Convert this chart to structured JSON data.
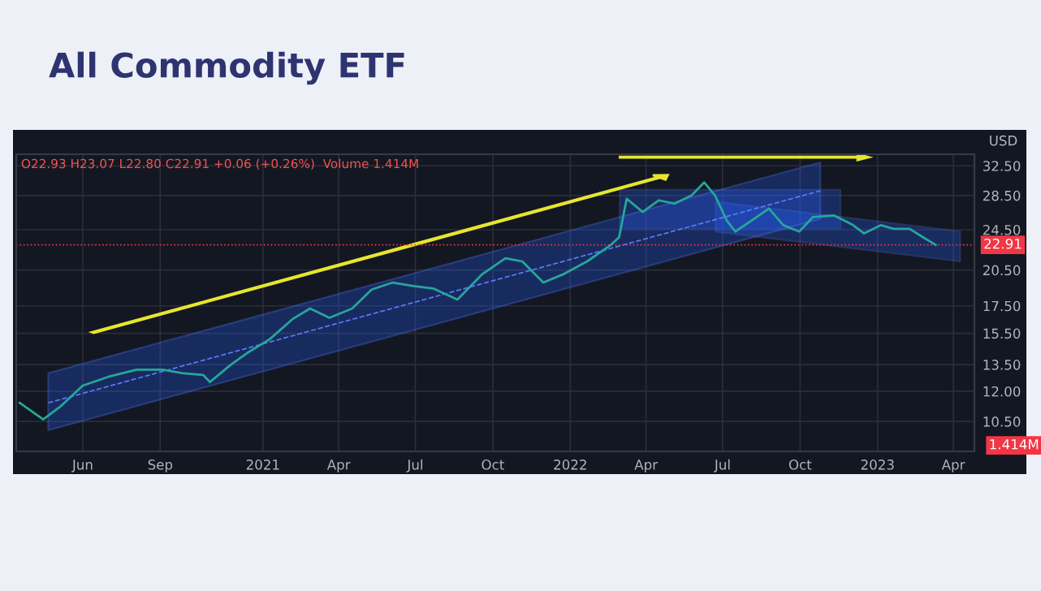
{
  "chart_data": {
    "type": "line",
    "title": "All Commodity ETF",
    "ylabel": "USD",
    "annotations": [
      "O22.93 H23.07 L22.80 C22.91 +0.06 (+0.26%)  Volume 1.414M",
      "1.414M"
    ],
    "x": [
      "2020-03-18",
      "2020-04-15",
      "2020-05-05",
      "2020-06-01",
      "2020-07-02",
      "2020-08-04",
      "2020-09-04",
      "2020-09-27",
      "2020-10-22",
      "2020-10-30",
      "2020-11-24",
      "2020-12-13",
      "2021-01-09",
      "2021-02-05",
      "2021-02-26",
      "2021-03-21",
      "2021-04-17",
      "2021-05-10",
      "2021-06-04",
      "2021-06-29",
      "2021-07-22",
      "2021-08-20",
      "2021-09-18",
      "2021-10-16",
      "2021-11-05",
      "2021-11-30",
      "2021-12-23",
      "2022-01-21",
      "2022-02-18",
      "2022-02-28",
      "2022-03-09",
      "2022-03-28",
      "2022-04-16",
      "2022-05-05",
      "2022-05-25",
      "2022-06-09",
      "2022-06-22",
      "2022-07-06",
      "2022-07-16",
      "2022-08-04",
      "2022-08-25",
      "2022-09-11",
      "2022-09-30",
      "2022-10-16",
      "2022-11-10",
      "2022-12-03",
      "2022-12-16",
      "2023-01-05",
      "2023-01-20",
      "2023-02-08",
      "2023-02-24",
      "2023-03-11"
    ],
    "series": [
      {
        "type": "line",
        "color": "#5b7cff",
        "line_style": "dashed",
        "x": [
          "2020-04-21",
          "2022-10-25"
        ],
        "values": [
          11.4,
          29.1
        ],
        "lower": [
          10.1,
          25.7
        ],
        "upper": [
          13.0,
          33.0
        ]
      },
      {
        "color": "#26a69a",
        "values": [
          11.4,
          10.6,
          11.2,
          12.3,
          12.8,
          13.2,
          13.2,
          13.0,
          12.9,
          12.5,
          13.5,
          14.2,
          15.1,
          16.5,
          17.3,
          16.6,
          17.3,
          18.8,
          19.4,
          19.1,
          18.9,
          18.0,
          20.1,
          21.6,
          21.3,
          19.4,
          20.1,
          21.3,
          22.9,
          23.7,
          28.1,
          26.5,
          27.9,
          27.5,
          28.5,
          30.2,
          28.5,
          25.5,
          24.3,
          25.5,
          26.9,
          25.0,
          24.3,
          25.9,
          26.1,
          25.0,
          24.1,
          25.0,
          24.6,
          24.6,
          23.7,
          22.91
        ]
      }
    ],
    "log": true,
    "ylim": [
      9.2,
      34.2
    ],
    "yticks": [
      {
        "value": 10.5,
        "label": "10.50"
      },
      {
        "value": 12,
        "label": "12.00"
      },
      {
        "value": 13.5,
        "label": "13.50"
      },
      {
        "value": 15.5,
        "label": "15.50"
      },
      {
        "value": 17.5,
        "label": "17.50"
      },
      {
        "value": 20.5,
        "label": "20.50"
      },
      {
        "value": 24.5,
        "label": "24.50"
      },
      {
        "value": 28.5,
        "label": "28.50"
      },
      {
        "value": 32.5,
        "label": "32.50"
      }
    ],
    "xlim": [
      "2020-03-14",
      "2023-04-26"
    ],
    "xticks": [
      {
        "value": "2020-06-01",
        "label": "Jun"
      },
      {
        "value": "2020-09-01",
        "label": "Sep"
      },
      {
        "value": "2021-01-01",
        "label": "2021"
      },
      {
        "value": "2021-04-01",
        "label": "Apr"
      },
      {
        "value": "2021-07-01",
        "label": "Jul"
      },
      {
        "value": "2021-10-01",
        "label": "Oct"
      },
      {
        "value": "2022-01-01",
        "label": "2022"
      },
      {
        "value": "2022-04-01",
        "label": "Apr"
      },
      {
        "value": "2022-07-01",
        "label": "Jul"
      },
      {
        "value": "2022-10-01",
        "label": "Oct"
      },
      {
        "value": "2023-01-01",
        "label": "2023"
      },
      {
        "value": "2023-04-01",
        "label": "Apr"
      }
    ],
    "ref_lines": [
      {
        "axis": "y",
        "value": 22.91,
        "label": "22.91",
        "color": "#f23645",
        "line_style": "dotted"
      }
    ],
    "grid": true,
    "legend": false,
    "marker": "none",
    "line_style": "solid"
  }
}
